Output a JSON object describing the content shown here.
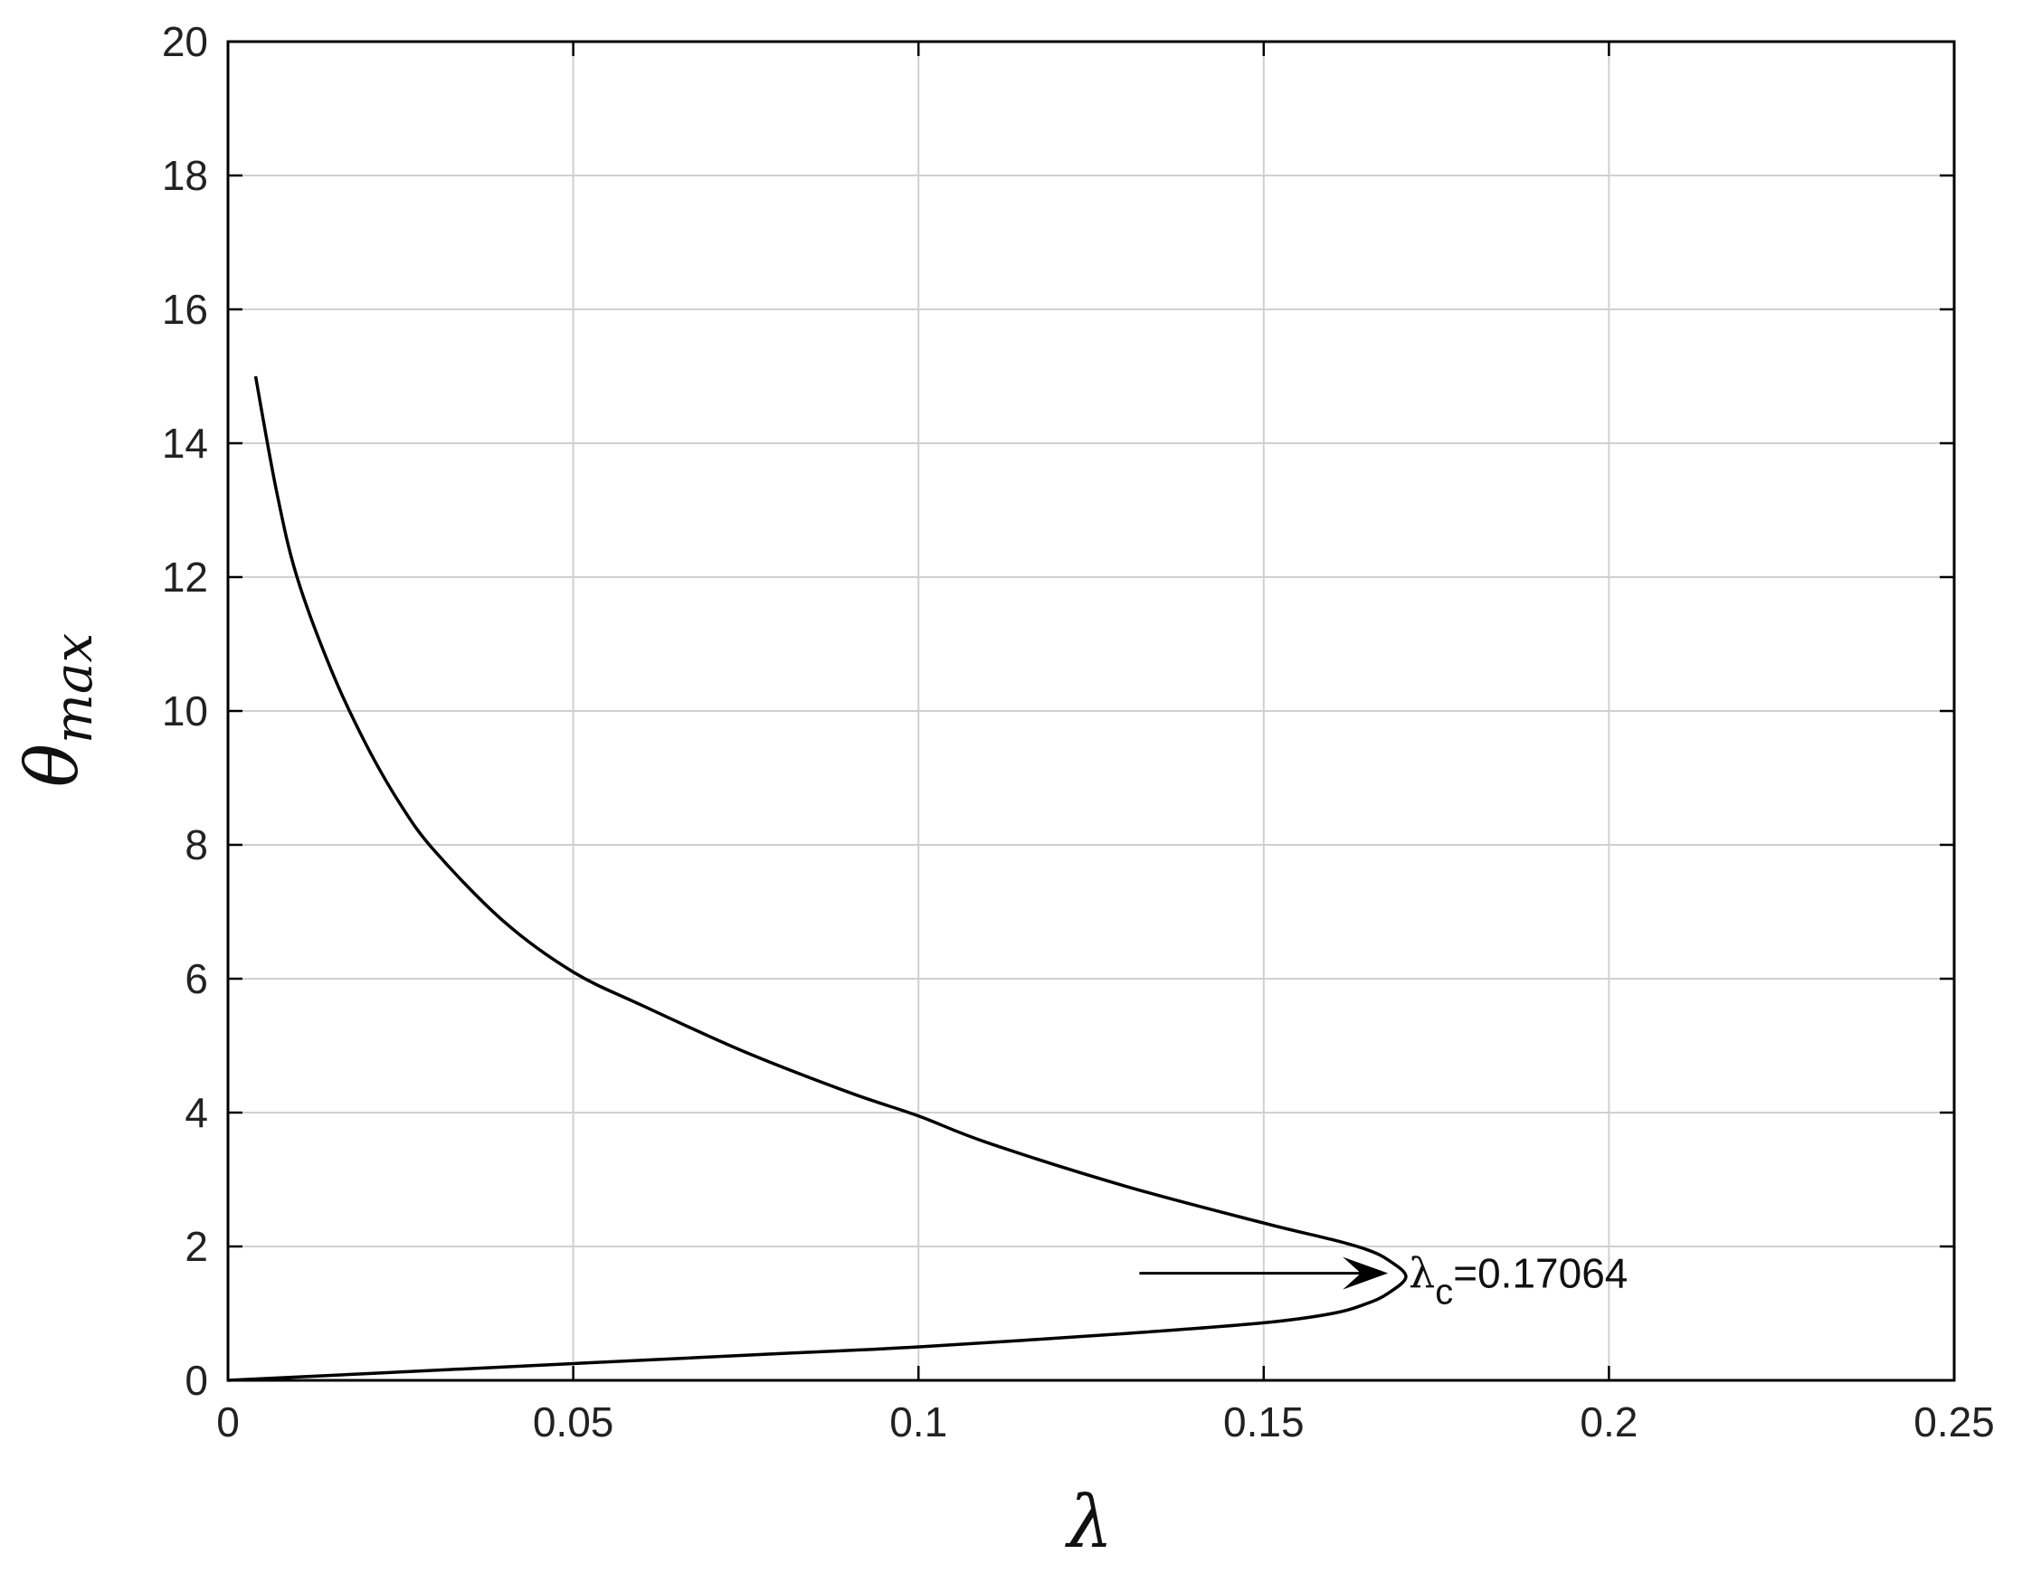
{
  "chart_data": {
    "type": "line",
    "title": "",
    "xlabel": "λ",
    "ylabel": {
      "base": "θ",
      "subscript": "max"
    },
    "xlim": [
      0,
      0.25
    ],
    "ylim": [
      0,
      20
    ],
    "x_ticks": [
      0,
      0.05,
      0.1,
      0.15,
      0.2,
      0.25
    ],
    "x_tick_labels": [
      "0",
      "0.05",
      "0.1",
      "0.15",
      "0.2",
      "0.25"
    ],
    "y_ticks": [
      0,
      2,
      4,
      6,
      8,
      10,
      12,
      14,
      16,
      18,
      20
    ],
    "y_tick_labels": [
      "0",
      "2",
      "4",
      "6",
      "8",
      "10",
      "12",
      "14",
      "16",
      "18",
      "20"
    ],
    "grid": true,
    "series": [
      {
        "color": "#000000",
        "points": [
          [
            0.0,
            0.0
          ],
          [
            0.02,
            0.1
          ],
          [
            0.05,
            0.25
          ],
          [
            0.08,
            0.4
          ],
          [
            0.1,
            0.5
          ],
          [
            0.13,
            0.7
          ],
          [
            0.15,
            0.86
          ],
          [
            0.16,
            1.0
          ],
          [
            0.165,
            1.15
          ],
          [
            0.168,
            1.3
          ],
          [
            0.1706,
            1.55
          ],
          [
            0.168,
            1.8
          ],
          [
            0.165,
            1.95
          ],
          [
            0.16,
            2.1
          ],
          [
            0.15,
            2.35
          ],
          [
            0.13,
            2.9
          ],
          [
            0.11,
            3.55
          ],
          [
            0.1,
            3.95
          ],
          [
            0.09,
            4.3
          ],
          [
            0.075,
            4.9
          ],
          [
            0.06,
            5.6
          ],
          [
            0.05,
            6.1
          ],
          [
            0.04,
            6.85
          ],
          [
            0.03,
            7.9
          ],
          [
            0.025,
            8.6
          ],
          [
            0.02,
            9.5
          ],
          [
            0.015,
            10.6
          ],
          [
            0.01,
            12.0
          ],
          [
            0.007,
            13.3
          ],
          [
            0.004,
            15.0
          ]
        ]
      }
    ],
    "annotations": [
      {
        "text_base": "λ",
        "text_subscript": "c",
        "text_value": "=0.17064",
        "arrow_from": [
          0.132,
          1.6
        ],
        "arrow_to": [
          0.168,
          1.6
        ],
        "text_at": [
          0.171,
          1.6
        ]
      }
    ]
  }
}
